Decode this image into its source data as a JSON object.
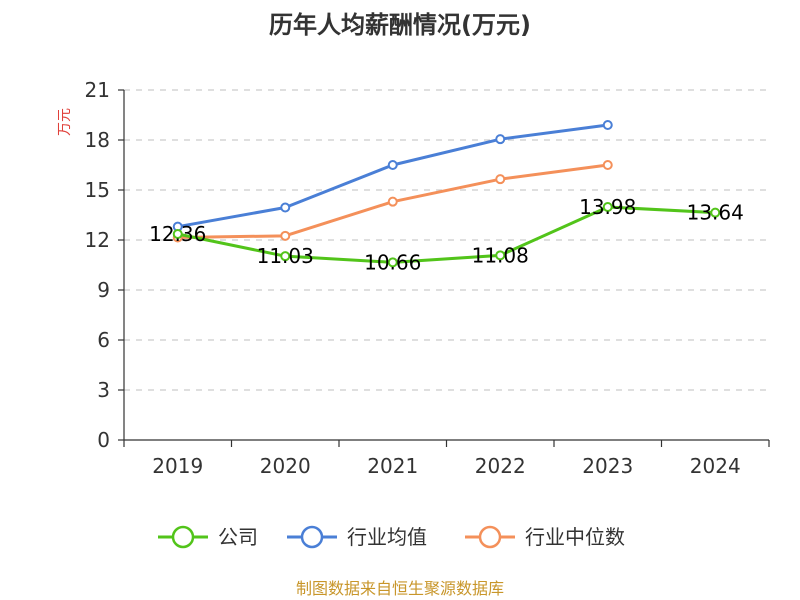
{
  "chart_data": {
    "type": "line",
    "title": "历年人均薪酬情况(万元)",
    "ylabel": "万元",
    "xlabel": "",
    "categories": [
      "2019",
      "2020",
      "2021",
      "2022",
      "2023",
      "2024"
    ],
    "ylim": [
      0,
      21
    ],
    "yticks": [
      0,
      3,
      6,
      9,
      12,
      15,
      18,
      21
    ],
    "grid": true,
    "legend_position": "bottom",
    "series": [
      {
        "name": "公司",
        "color": "#52c41a",
        "values": [
          12.36,
          11.03,
          10.66,
          11.08,
          13.98,
          13.64
        ],
        "show_labels": true
      },
      {
        "name": "行业均值",
        "color": "#4a7fd6",
        "values": [
          12.8,
          13.95,
          16.5,
          18.05,
          18.9,
          null
        ],
        "show_labels": false
      },
      {
        "name": "行业中位数",
        "color": "#f4905a",
        "values": [
          12.15,
          12.25,
          14.3,
          15.65,
          16.5,
          null
        ],
        "show_labels": false
      }
    ],
    "data_labels": [
      "12.36",
      "11.03",
      "10.66",
      "11.08",
      "13.98",
      "13.64"
    ]
  },
  "footer": {
    "source": "制图数据来自恒生聚源数据库",
    "source_color": "#c8962a",
    "ylabel_color": "#e0403a"
  }
}
